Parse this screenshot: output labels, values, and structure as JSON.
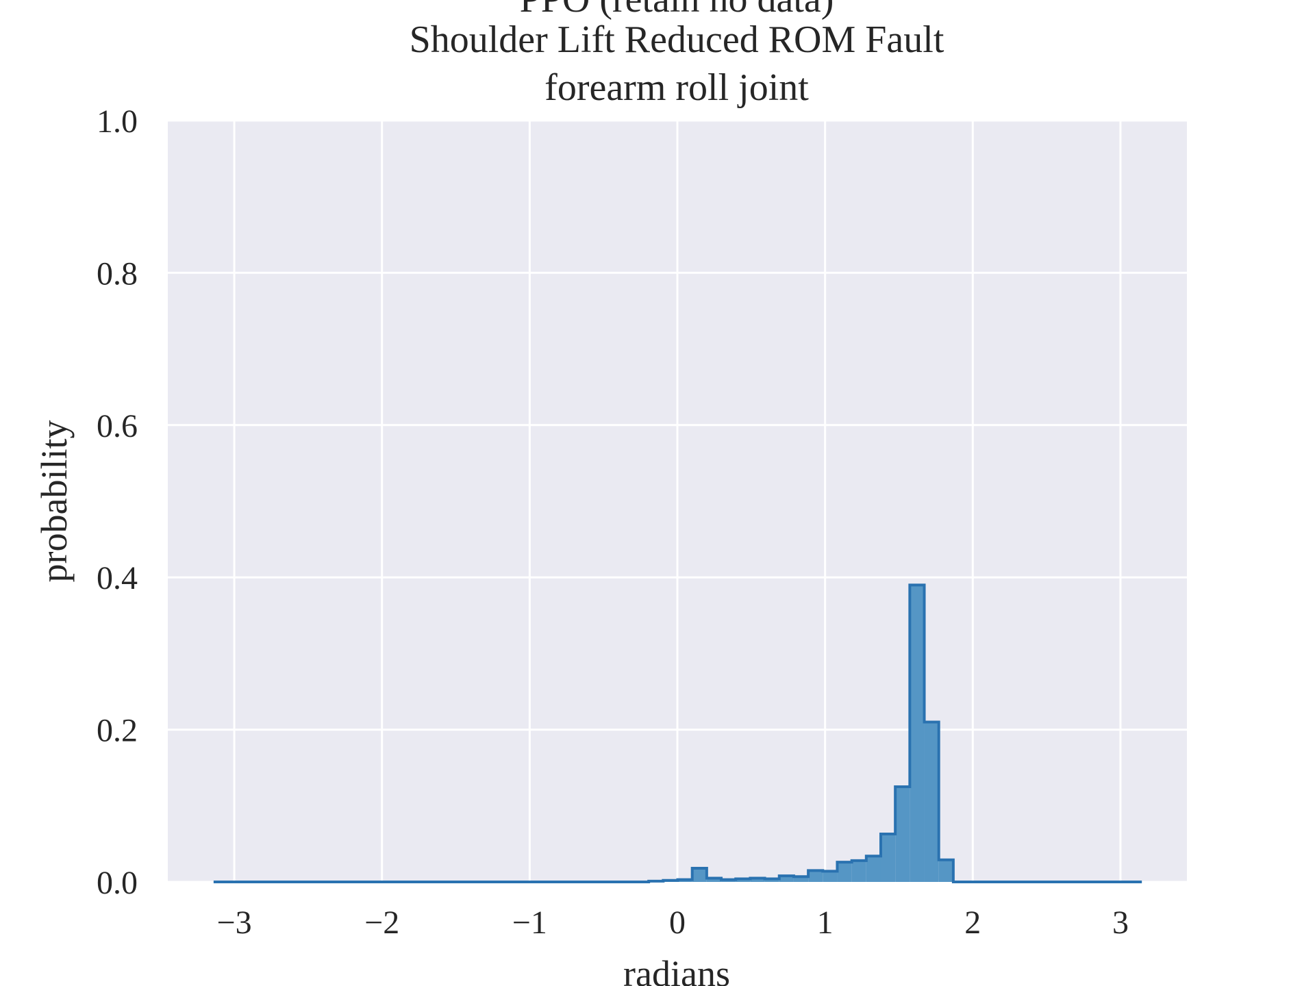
{
  "chart_data": {
    "type": "bar",
    "title_lines": [
      "PPO (retain no data)",
      "Shoulder Lift Reduced ROM Fault",
      "forearm roll joint"
    ],
    "xlabel": "radians",
    "ylabel": "probability",
    "xlim": [
      -3.45,
      3.45
    ],
    "ylim": [
      0.0,
      1.0
    ],
    "xticks": [
      {
        "value": -3,
        "label": "−3"
      },
      {
        "value": -2,
        "label": "−2"
      },
      {
        "value": -1,
        "label": "−1"
      },
      {
        "value": 0,
        "label": "0"
      },
      {
        "value": 1,
        "label": "1"
      },
      {
        "value": 2,
        "label": "2"
      },
      {
        "value": 3,
        "label": "3"
      }
    ],
    "yticks": [
      {
        "value": 0.0,
        "label": "0.0"
      },
      {
        "value": 0.2,
        "label": "0.2"
      },
      {
        "value": 0.4,
        "label": "0.4"
      },
      {
        "value": 0.6,
        "label": "0.6"
      },
      {
        "value": 0.8,
        "label": "0.8"
      },
      {
        "value": 1.0,
        "label": "1.0"
      }
    ],
    "grid": true,
    "bin_start": -3.14,
    "bin_width": 0.0982,
    "values": [
      0,
      0,
      0,
      0,
      0,
      0,
      0,
      0,
      0,
      0,
      0,
      0,
      0,
      0,
      0,
      0,
      0,
      0,
      0,
      0,
      0,
      0,
      0,
      0,
      0,
      0,
      0,
      0,
      0,
      0,
      0.001,
      0.002,
      0.003,
      0.018,
      0.005,
      0.003,
      0.004,
      0.005,
      0.004,
      0.008,
      0.007,
      0.015,
      0.014,
      0.026,
      0.028,
      0.034,
      0.063,
      0.125,
      0.39,
      0.21,
      0.029,
      0,
      0,
      0,
      0,
      0,
      0,
      0,
      0,
      0,
      0,
      0,
      0,
      0
    ],
    "colors": {
      "fill": "#5596c5",
      "edge": "#2a72b0",
      "background": "#eaeaf2",
      "grid": "#ffffff"
    }
  }
}
